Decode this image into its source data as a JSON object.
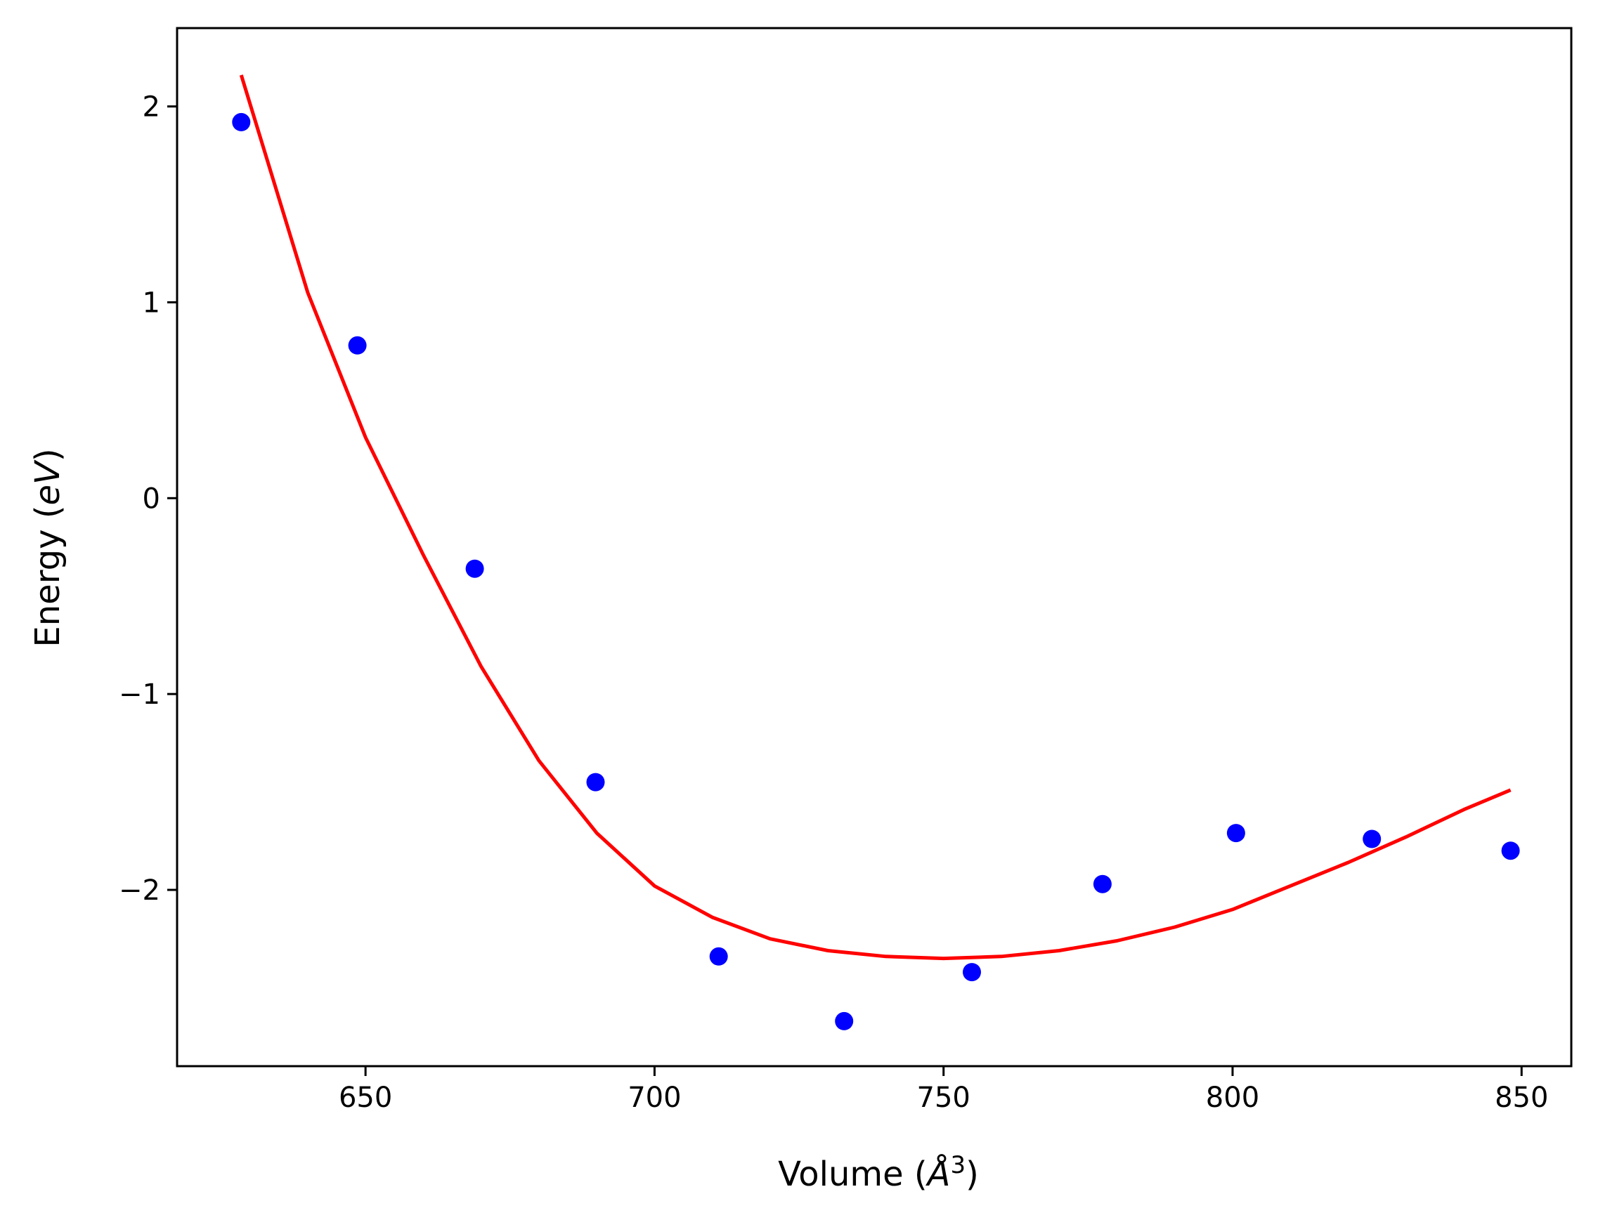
{
  "chart_data": {
    "type": "scatter",
    "title": "",
    "xlabel_prefix": "Volume (",
    "xlabel_symbol": "Å",
    "xlabel_power": "3",
    "xlabel_suffix": ")",
    "ylabel_prefix": "Energy (",
    "ylabel_italic": "eV",
    "ylabel_suffix": ")",
    "xlim": [
      617.4,
      858.6
    ],
    "ylim": [
      -2.9,
      2.4
    ],
    "x_ticks": [
      650,
      700,
      750,
      800,
      850
    ],
    "x_tick_labels": [
      "650",
      "700",
      "750",
      "800",
      "850"
    ],
    "y_ticks": [
      2,
      1,
      0,
      -1,
      -2
    ],
    "y_tick_labels": [
      "2",
      "1",
      "0",
      "−1",
      "−2"
    ],
    "grid": false,
    "points": {
      "color": "#0000ff",
      "x": [
        628.5,
        648.6,
        668.9,
        689.8,
        711.1,
        732.8,
        754.9,
        777.5,
        800.6,
        824.1,
        848.1
      ],
      "y": [
        1.92,
        0.78,
        -0.36,
        -1.45,
        -2.34,
        -2.67,
        -2.42,
        -1.97,
        -1.71,
        -1.74,
        -1.8
      ]
    },
    "fit": {
      "color": "#ff0000",
      "x": [
        628.5,
        640,
        650,
        660,
        670,
        680,
        690,
        700,
        710,
        720,
        730,
        740,
        750,
        760,
        770,
        780,
        790,
        800,
        810,
        820,
        830,
        840,
        848.1
      ],
      "y": [
        2.16,
        1.05,
        0.31,
        -0.29,
        -0.86,
        -1.34,
        -1.71,
        -1.98,
        -2.14,
        -2.25,
        -2.31,
        -2.34,
        -2.35,
        -2.34,
        -2.31,
        -2.26,
        -2.19,
        -2.1,
        -1.98,
        -1.86,
        -1.73,
        -1.59,
        -1.49
      ]
    }
  }
}
